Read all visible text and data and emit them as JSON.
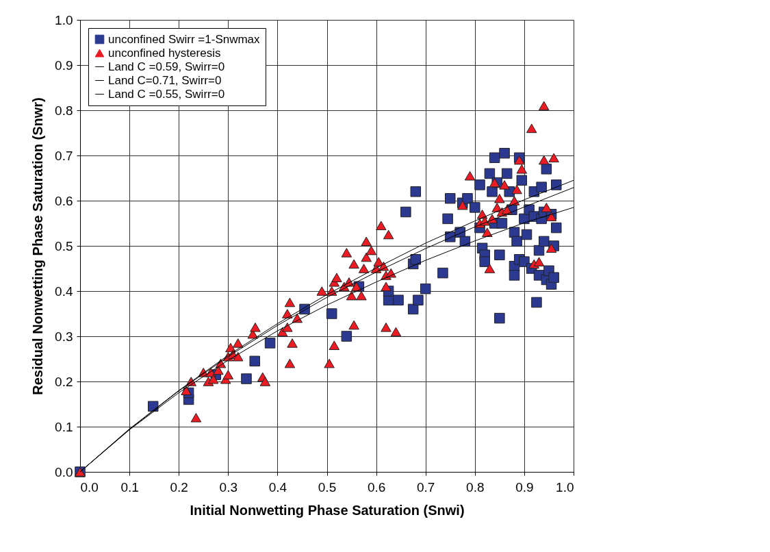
{
  "chart_data": {
    "type": "scatter",
    "xlabel": "Initial Nonwetting Phase Saturation (Snwi)",
    "ylabel": "Residual Nonwetting Phase Saturation (Snwr)",
    "xlim": [
      0,
      1
    ],
    "ylim": [
      0,
      1
    ],
    "xticks": [
      {
        "value": 0,
        "label": "0.0"
      },
      0.1,
      0.2,
      0.3,
      0.4,
      0.5,
      0.6,
      0.7,
      0.8,
      0.9,
      {
        "value": 1,
        "label": "1.0"
      }
    ],
    "yticks": [
      {
        "value": 0,
        "label": "0.0"
      },
      0.1,
      0.2,
      0.3,
      0.4,
      0.5,
      0.6,
      0.7,
      0.8,
      0.9,
      {
        "value": 1,
        "label": "1.0"
      }
    ],
    "grid": true,
    "legend": "top left",
    "series": [
      {
        "name": "unconfined Swirr =1-Snwmax",
        "marker": "square",
        "color": "#2b3990",
        "x": [
          0.0,
          0.148,
          0.22,
          0.22,
          0.275,
          0.337,
          0.354,
          0.385,
          0.455,
          0.51,
          0.54,
          0.565,
          0.625,
          0.625,
          0.645,
          0.66,
          0.675,
          0.675,
          0.68,
          0.68,
          0.685,
          0.7,
          0.735,
          0.745,
          0.75,
          0.75,
          0.77,
          0.775,
          0.78,
          0.785,
          0.8,
          0.81,
          0.81,
          0.815,
          0.82,
          0.82,
          0.83,
          0.835,
          0.84,
          0.84,
          0.845,
          0.85,
          0.85,
          0.855,
          0.86,
          0.865,
          0.87,
          0.875,
          0.88,
          0.88,
          0.88,
          0.885,
          0.89,
          0.89,
          0.895,
          0.9,
          0.9,
          0.905,
          0.91,
          0.915,
          0.92,
          0.92,
          0.925,
          0.93,
          0.93,
          0.935,
          0.935,
          0.94,
          0.94,
          0.945,
          0.945,
          0.95,
          0.955,
          0.955,
          0.96,
          0.96,
          0.965,
          0.965
        ],
        "values": [
          0.0,
          0.145,
          0.16,
          0.175,
          0.215,
          0.206,
          0.245,
          0.285,
          0.36,
          0.35,
          0.3,
          0.41,
          0.38,
          0.4,
          0.38,
          0.575,
          0.36,
          0.46,
          0.47,
          0.62,
          0.38,
          0.405,
          0.44,
          0.56,
          0.605,
          0.52,
          0.53,
          0.595,
          0.51,
          0.605,
          0.585,
          0.635,
          0.54,
          0.495,
          0.48,
          0.465,
          0.66,
          0.62,
          0.695,
          0.55,
          0.64,
          0.48,
          0.34,
          0.55,
          0.705,
          0.66,
          0.62,
          0.58,
          0.53,
          0.455,
          0.435,
          0.51,
          0.695,
          0.47,
          0.645,
          0.56,
          0.465,
          0.525,
          0.58,
          0.45,
          0.565,
          0.62,
          0.375,
          0.49,
          0.435,
          0.63,
          0.56,
          0.575,
          0.51,
          0.67,
          0.425,
          0.445,
          0.415,
          0.57,
          0.43,
          0.5,
          0.635,
          0.54
        ]
      },
      {
        "name": "unconfined hysteresis",
        "marker": "triangle",
        "color": "#ed1c24",
        "x": [
          0.0,
          0.215,
          0.225,
          0.235,
          0.25,
          0.26,
          0.265,
          0.27,
          0.28,
          0.285,
          0.295,
          0.3,
          0.3,
          0.305,
          0.31,
          0.32,
          0.32,
          0.35,
          0.355,
          0.37,
          0.375,
          0.41,
          0.42,
          0.42,
          0.425,
          0.425,
          0.43,
          0.44,
          0.49,
          0.505,
          0.51,
          0.515,
          0.515,
          0.52,
          0.535,
          0.54,
          0.545,
          0.55,
          0.555,
          0.555,
          0.56,
          0.57,
          0.575,
          0.58,
          0.58,
          0.59,
          0.6,
          0.605,
          0.61,
          0.615,
          0.62,
          0.62,
          0.62,
          0.625,
          0.63,
          0.64,
          0.775,
          0.79,
          0.81,
          0.815,
          0.82,
          0.825,
          0.83,
          0.835,
          0.84,
          0.845,
          0.85,
          0.855,
          0.86,
          0.865,
          0.88,
          0.885,
          0.89,
          0.895,
          0.915,
          0.92,
          0.93,
          0.94,
          0.94,
          0.945,
          0.955,
          0.955,
          0.96
        ],
        "values": [
          0.0,
          0.18,
          0.2,
          0.12,
          0.22,
          0.2,
          0.22,
          0.205,
          0.225,
          0.24,
          0.205,
          0.215,
          0.255,
          0.275,
          0.26,
          0.285,
          0.255,
          0.305,
          0.32,
          0.21,
          0.2,
          0.31,
          0.32,
          0.35,
          0.375,
          0.24,
          0.285,
          0.34,
          0.4,
          0.24,
          0.4,
          0.28,
          0.42,
          0.43,
          0.41,
          0.485,
          0.42,
          0.39,
          0.46,
          0.325,
          0.41,
          0.39,
          0.45,
          0.51,
          0.475,
          0.49,
          0.45,
          0.465,
          0.545,
          0.455,
          0.41,
          0.435,
          0.32,
          0.525,
          0.44,
          0.31,
          0.59,
          0.655,
          0.55,
          0.57,
          0.555,
          0.53,
          0.45,
          0.56,
          0.64,
          0.585,
          0.605,
          0.575,
          0.635,
          0.58,
          0.6,
          0.625,
          0.69,
          0.67,
          0.76,
          0.46,
          0.465,
          0.81,
          0.69,
          0.585,
          0.565,
          0.495,
          0.695
        ]
      },
      {
        "name": "Land C =0.59, Swirr=0",
        "type": "line",
        "color": "#000000",
        "x": [
          0,
          0.1,
          0.2,
          0.3,
          0.4,
          0.5,
          0.6,
          0.7,
          0.8,
          0.9,
          1.0
        ],
        "values": [
          0,
          0.094,
          0.179,
          0.255,
          0.324,
          0.386,
          0.442,
          0.494,
          0.542,
          0.586,
          0.629
        ]
      },
      {
        "name": "Land C=0.71, Swirr=0",
        "type": "line",
        "color": "#000000",
        "x": [
          0,
          0.1,
          0.2,
          0.3,
          0.4,
          0.5,
          0.6,
          0.7,
          0.8,
          0.9,
          1.0
        ],
        "values": [
          0,
          0.093,
          0.175,
          0.247,
          0.312,
          0.369,
          0.42,
          0.468,
          0.511,
          0.551,
          0.585
        ]
      },
      {
        "name": "Land C =0.55, Swirr=0",
        "type": "line",
        "color": "#000000",
        "x": [
          0,
          0.1,
          0.2,
          0.3,
          0.4,
          0.5,
          0.6,
          0.7,
          0.8,
          0.9,
          1.0
        ],
        "values": [
          0,
          0.095,
          0.18,
          0.258,
          0.328,
          0.392,
          0.451,
          0.506,
          0.555,
          0.602,
          0.645
        ]
      }
    ]
  }
}
